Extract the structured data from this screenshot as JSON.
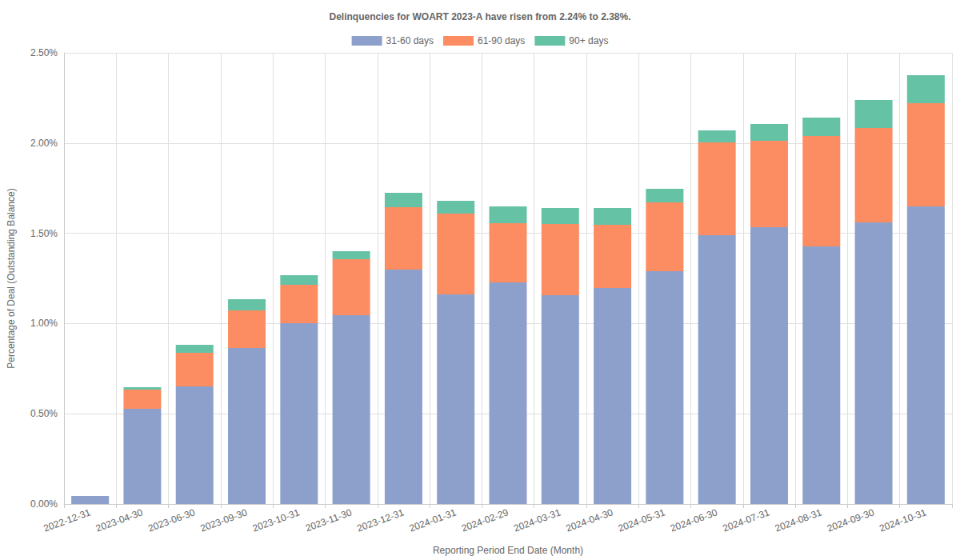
{
  "chart_data": {
    "type": "bar",
    "title": "Delinquencies for WOART 2023-A have risen from 2.24% to 2.38%.",
    "x_label": "Reporting Period End Date (Month)",
    "y_label": "Percentage of Deal (Outstanding Balance)",
    "categories": [
      "2022-12-31",
      "2023-04-30",
      "2023-06-30",
      "2023-09-30",
      "2023-10-31",
      "2023-11-30",
      "2023-12-31",
      "2024-01-31",
      "2024-02-29",
      "2024-03-31",
      "2024-04-30",
      "2024-05-31",
      "2024-06-30",
      "2024-07-31",
      "2024-08-31",
      "2024-09-30",
      "2024-10-31"
    ],
    "series": [
      {
        "name": "31-60 days",
        "color": "#8da0cb",
        "values": [
          0.044,
          0.527,
          0.652,
          0.864,
          1.002,
          1.046,
          1.299,
          1.161,
          1.228,
          1.157,
          1.197,
          1.29,
          1.489,
          1.534,
          1.427,
          1.56,
          1.649
        ]
      },
      {
        "name": "61-90 days",
        "color": "#fc8d62",
        "values": [
          0,
          0.107,
          0.186,
          0.209,
          0.213,
          0.31,
          0.345,
          0.448,
          0.328,
          0.394,
          0.35,
          0.381,
          0.515,
          0.478,
          0.612,
          0.523,
          0.572
        ]
      },
      {
        "name": "90+ days",
        "color": "#66c2a5",
        "values": [
          0,
          0.013,
          0.044,
          0.062,
          0.053,
          0.045,
          0.08,
          0.071,
          0.093,
          0.089,
          0.093,
          0.075,
          0.066,
          0.093,
          0.102,
          0.155,
          0.155
        ]
      }
    ],
    "stacked": true,
    "ylim": [
      0,
      2.5
    ],
    "yticks": [
      {
        "value": 0,
        "label": "0.00%"
      },
      {
        "value": 0.5,
        "label": "0.50%"
      },
      {
        "value": 1,
        "label": "1.00%"
      },
      {
        "value": 1.5,
        "label": "1.50%"
      },
      {
        "value": 2,
        "label": "2.00%"
      },
      {
        "value": 2.5,
        "label": "2.50%"
      }
    ],
    "grid": true,
    "legend": "top"
  }
}
